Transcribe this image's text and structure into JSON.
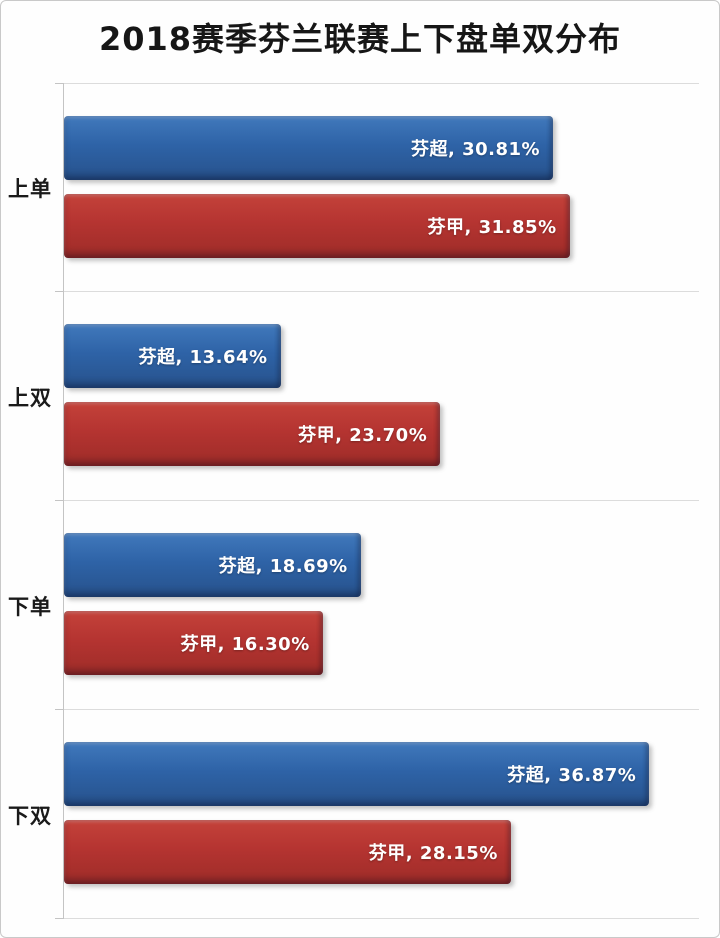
{
  "title_bar": {
    "text": "2018赛季芬兰联赛上下盘单双分布"
  },
  "chart_data": {
    "type": "bar",
    "orientation": "horizontal",
    "title": "2018赛季芬兰联赛上下盘单双分布",
    "categories": [
      "上单",
      "上双",
      "下单",
      "下双"
    ],
    "series": [
      {
        "name": "芬超",
        "color": "#2E63A7",
        "values": [
          30.81,
          13.64,
          18.69,
          36.87
        ],
        "labels": [
          "芬超, 30.81%",
          "芬超, 13.64%",
          "芬超, 18.69%",
          "芬超, 36.87%"
        ]
      },
      {
        "name": "芬甲",
        "color": "#B53431",
        "values": [
          31.85,
          23.7,
          16.3,
          28.15
        ],
        "labels": [
          "芬甲, 31.85%",
          "芬甲, 23.70%",
          "芬甲, 16.30%",
          "芬甲, 28.15%"
        ]
      }
    ],
    "xlim": [
      0,
      40
    ],
    "xlabel": "",
    "ylabel": "",
    "grid": "category-separator-lines",
    "legend": "none",
    "data_labels": "inside-end",
    "colors": {
      "gridline": "#dcdcdc",
      "axis": "#c4c4c4",
      "label_text": "#ffffff",
      "title_text": "#161616"
    }
  }
}
